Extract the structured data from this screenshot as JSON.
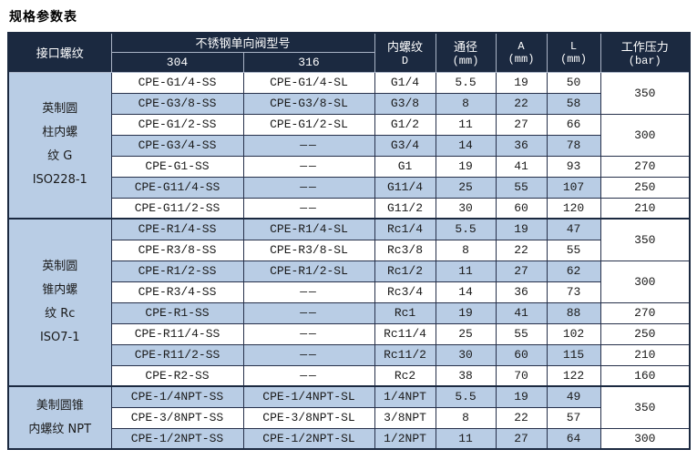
{
  "page_title": "规格参数表",
  "colors": {
    "header_bg": "#1b2940",
    "row_alt_bg": "#b9cde5",
    "row_bg": "#ffffff",
    "grid_line": "#26304a",
    "header_text": "#ffffff",
    "body_text": "#1a1a1a"
  },
  "table": {
    "header": {
      "interface_thread": "接口螺纹",
      "valve_model_group": "不锈钢单向阀型号",
      "model_304": "304",
      "model_316": "316",
      "thread_line1": "内螺纹",
      "thread_line2": "D",
      "bore_line1": "通径",
      "bore_line2": "(mm)",
      "a_line1": "A",
      "a_line2": "(mm)",
      "l_line1": "L",
      "l_line2": "(mm)",
      "pressure_line1": "工作压力",
      "pressure_line2": "(bar)"
    },
    "groups": [
      {
        "label_lines": [
          "英制圆",
          "柱内螺",
          "纹 G",
          "ISO228-1"
        ],
        "rows": [
          {
            "model_304": "CPE-G1/4-SS",
            "model_316": "CPE-G1/4-SL",
            "thread": "G1/4",
            "bore": "5.5",
            "a": "19",
            "l": "50",
            "shaded": false,
            "pressure": {
              "value": "350",
              "rowspan": 2
            }
          },
          {
            "model_304": "CPE-G3/8-SS",
            "model_316": "CPE-G3/8-SL",
            "thread": "G3/8",
            "bore": "8",
            "a": "22",
            "l": "58",
            "shaded": true,
            "pressure": null
          },
          {
            "model_304": "CPE-G1/2-SS",
            "model_316": "CPE-G1/2-SL",
            "thread": "G1/2",
            "bore": "11",
            "a": "27",
            "l": "66",
            "shaded": false,
            "pressure": {
              "value": "300",
              "rowspan": 2
            }
          },
          {
            "model_304": "CPE-G3/4-SS",
            "model_316": "——",
            "thread": "G3/4",
            "bore": "14",
            "a": "36",
            "l": "78",
            "shaded": true,
            "pressure": null
          },
          {
            "model_304": "CPE-G1-SS",
            "model_316": "——",
            "thread": "G1",
            "bore": "19",
            "a": "41",
            "l": "93",
            "shaded": false,
            "pressure": {
              "value": "270",
              "rowspan": 1
            }
          },
          {
            "model_304": "CPE-G11/4-SS",
            "model_316": "——",
            "thread": "G11/4",
            "bore": "25",
            "a": "55",
            "l": "107",
            "shaded": true,
            "pressure": {
              "value": "250",
              "rowspan": 1
            }
          },
          {
            "model_304": "CPE-G11/2-SS",
            "model_316": "——",
            "thread": "G11/2",
            "bore": "30",
            "a": "60",
            "l": "120",
            "shaded": false,
            "pressure": {
              "value": "210",
              "rowspan": 1
            }
          }
        ]
      },
      {
        "label_lines": [
          "英制圆",
          "锥内螺",
          "纹 Rc",
          "ISO7-1"
        ],
        "rows": [
          {
            "model_304": "CPE-R1/4-SS",
            "model_316": "CPE-R1/4-SL",
            "thread": "Rc1/4",
            "bore": "5.5",
            "a": "19",
            "l": "47",
            "shaded": true,
            "pressure": {
              "value": "350",
              "rowspan": 2
            }
          },
          {
            "model_304": "CPE-R3/8-SS",
            "model_316": "CPE-R3/8-SL",
            "thread": "Rc3/8",
            "bore": "8",
            "a": "22",
            "l": "55",
            "shaded": false,
            "pressure": null
          },
          {
            "model_304": "CPE-R1/2-SS",
            "model_316": "CPE-R1/2-SL",
            "thread": "Rc1/2",
            "bore": "11",
            "a": "27",
            "l": "62",
            "shaded": true,
            "pressure": {
              "value": "300",
              "rowspan": 2
            }
          },
          {
            "model_304": "CPE-R3/4-SS",
            "model_316": "——",
            "thread": "Rc3/4",
            "bore": "14",
            "a": "36",
            "l": "73",
            "shaded": false,
            "pressure": null
          },
          {
            "model_304": "CPE-R1-SS",
            "model_316": "——",
            "thread": "Rc1",
            "bore": "19",
            "a": "41",
            "l": "88",
            "shaded": true,
            "pressure": {
              "value": "270",
              "rowspan": 1
            }
          },
          {
            "model_304": "CPE-R11/4-SS",
            "model_316": "——",
            "thread": "Rc11/4",
            "bore": "25",
            "a": "55",
            "l": "102",
            "shaded": false,
            "pressure": {
              "value": "250",
              "rowspan": 1
            }
          },
          {
            "model_304": "CPE-R11/2-SS",
            "model_316": "——",
            "thread": "Rc11/2",
            "bore": "30",
            "a": "60",
            "l": "115",
            "shaded": true,
            "pressure": {
              "value": "210",
              "rowspan": 1
            }
          },
          {
            "model_304": "CPE-R2-SS",
            "model_316": "——",
            "thread": "Rc2",
            "bore": "38",
            "a": "70",
            "l": "122",
            "shaded": false,
            "pressure": {
              "value": "160",
              "rowspan": 1
            }
          }
        ]
      },
      {
        "label_lines": [
          "美制圆锥",
          "内螺纹 NPT"
        ],
        "rows": [
          {
            "model_304": "CPE-1/4NPT-SS",
            "model_316": "CPE-1/4NPT-SL",
            "thread": "1/4NPT",
            "bore": "5.5",
            "a": "19",
            "l": "49",
            "shaded": true,
            "pressure": {
              "value": "350",
              "rowspan": 2
            }
          },
          {
            "model_304": "CPE-3/8NPT-SS",
            "model_316": "CPE-3/8NPT-SL",
            "thread": "3/8NPT",
            "bore": "8",
            "a": "22",
            "l": "57",
            "shaded": false,
            "pressure": null
          },
          {
            "model_304": "CPE-1/2NPT-SS",
            "model_316": "CPE-1/2NPT-SL",
            "thread": "1/2NPT",
            "bore": "11",
            "a": "27",
            "l": "64",
            "shaded": true,
            "pressure": {
              "value": "300",
              "rowspan": 1
            }
          }
        ]
      }
    ]
  }
}
